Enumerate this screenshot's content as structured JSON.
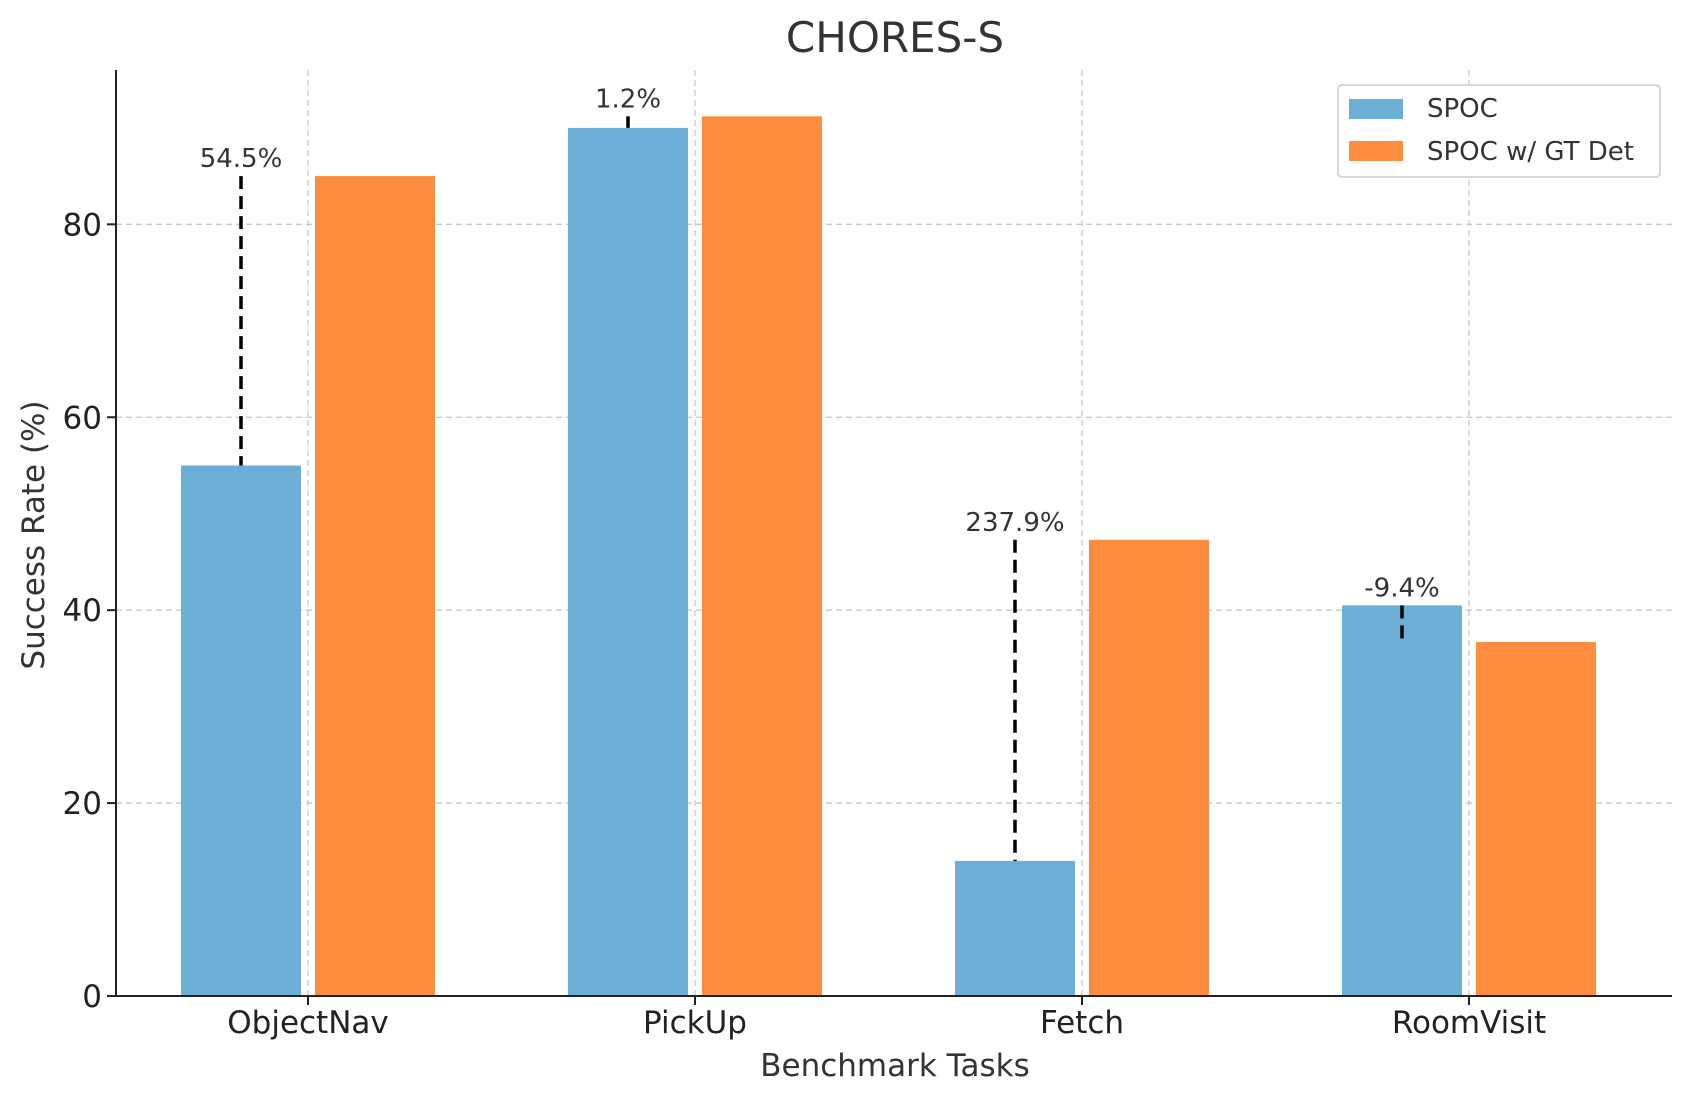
{
  "chart_data": {
    "type": "bar",
    "title": "CHORES-S",
    "xlabel": "Benchmark Tasks",
    "ylabel": "Success Rate (%)",
    "categories": [
      "ObjectNav",
      "PickUp",
      "Fetch",
      "RoomVisit"
    ],
    "series": [
      {
        "name": "SPOC",
        "color": "#6baed6",
        "values": [
          55.0,
          90.0,
          14.0,
          40.5
        ]
      },
      {
        "name": "SPOC w/ GT Det",
        "color": "#fd8d3c",
        "values": [
          85.0,
          91.2,
          47.3,
          36.7
        ]
      }
    ],
    "annotations": [
      "54.5%",
      "1.2%",
      "237.9%",
      "-9.4%"
    ],
    "ylim": [
      0,
      96
    ],
    "yticks": [
      0,
      20,
      40,
      60,
      80
    ],
    "grid": true,
    "legend_position": "top-right"
  }
}
